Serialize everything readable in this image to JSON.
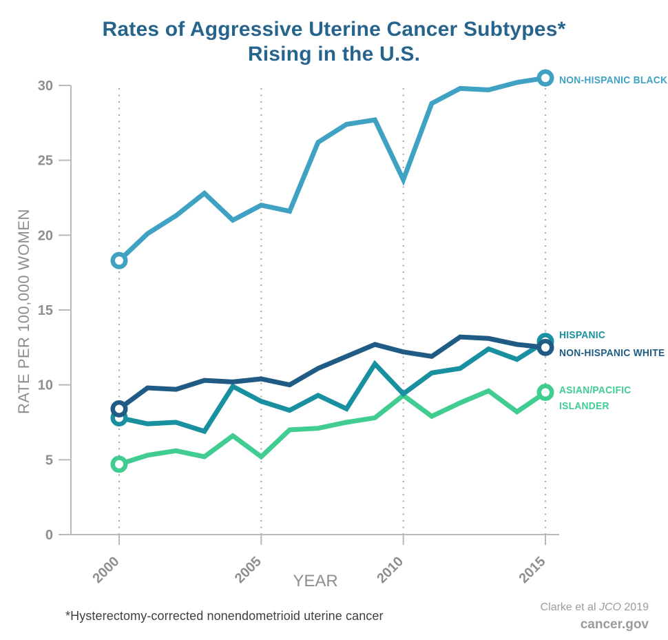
{
  "title": {
    "line1": "Rates of Aggressive Uterine Cancer Subtypes*",
    "line2": "Rising in the U.S."
  },
  "chart_data": {
    "type": "line",
    "x": [
      2000,
      2001,
      2002,
      2003,
      2004,
      2005,
      2006,
      2007,
      2008,
      2009,
      2010,
      2011,
      2012,
      2013,
      2014,
      2015
    ],
    "xlabel": "YEAR",
    "ylabel": "RATE PER 100,000 WOMEN",
    "ylim": [
      0,
      30
    ],
    "yticks": [
      0,
      5,
      10,
      15,
      20,
      25,
      30
    ],
    "xticks": [
      2000,
      2005,
      2010,
      2015
    ],
    "grid": "dotted vertical gridlines at xticks",
    "legend_position": "labels right of 2015 endpoints",
    "markers": "open circles at first and last data points",
    "series": [
      {
        "name": "NON-HISPANIC BLACK",
        "color": "#3FA2C2",
        "label_lines": [
          "NON-HISPANIC BLACK"
        ],
        "values": [
          18.3,
          20.1,
          21.3,
          22.8,
          21.0,
          22.0,
          21.6,
          26.2,
          27.4,
          27.7,
          23.7,
          28.8,
          29.8,
          29.7,
          30.2,
          30.5
        ]
      },
      {
        "name": "HISPANIC",
        "color": "#18909F",
        "label_lines": [
          "HISPANIC"
        ],
        "values": [
          7.8,
          7.4,
          7.5,
          6.9,
          9.9,
          8.9,
          8.3,
          9.3,
          8.4,
          11.4,
          9.4,
          10.8,
          11.1,
          12.4,
          11.7,
          12.9
        ]
      },
      {
        "name": "NON-HISPANIC WHITE",
        "color": "#1F5B84",
        "label_lines": [
          "NON-HISPANIC WHITE"
        ],
        "values": [
          8.4,
          9.8,
          9.7,
          10.3,
          10.2,
          10.4,
          10.0,
          11.1,
          11.9,
          12.7,
          12.2,
          11.9,
          13.2,
          13.1,
          12.7,
          12.5
        ]
      },
      {
        "name": "ASIAN/PACIFIC ISLANDER",
        "color": "#41CD92",
        "label_lines": [
          "ASIAN/PACIFIC",
          "ISLANDER"
        ],
        "values": [
          4.7,
          5.3,
          5.6,
          5.2,
          6.6,
          5.2,
          7.0,
          7.1,
          7.5,
          7.8,
          9.3,
          7.9,
          8.8,
          9.6,
          8.2,
          9.5
        ]
      }
    ]
  },
  "footer": {
    "note": "*Hysterectomy-corrected nonendometrioid uterine cancer",
    "credit_prefix": "Clarke et al ",
    "credit_journal": "JCO",
    "credit_year": " 2019",
    "site": "cancer.gov"
  },
  "colors": {
    "title": "#26648E",
    "axis": "#B9B9B9",
    "tick_text": "#8E8E8E",
    "grid": "#8F8F8F",
    "note": "#3F3F3F",
    "credit": "#9B9B9B"
  }
}
